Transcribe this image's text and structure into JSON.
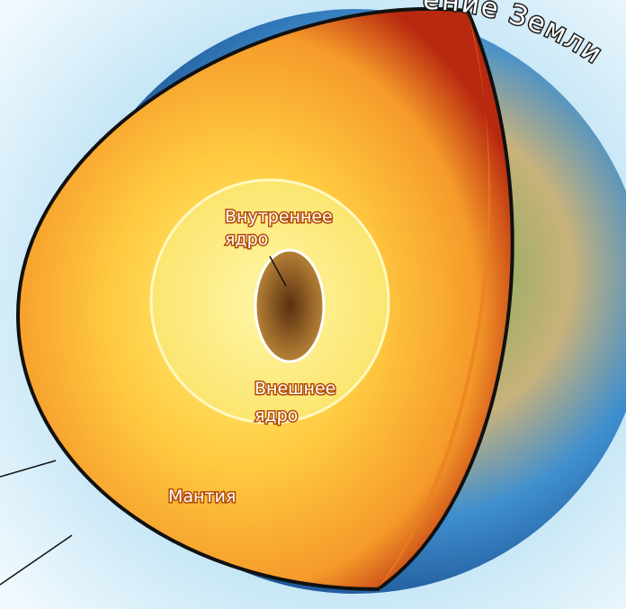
{
  "title": "ение Земли",
  "labels": {
    "inner_core": [
      "Внутреннее",
      "ядро"
    ],
    "outer_core": [
      "Внешнее",
      "ядро"
    ],
    "mantle": "Мантия"
  }
}
